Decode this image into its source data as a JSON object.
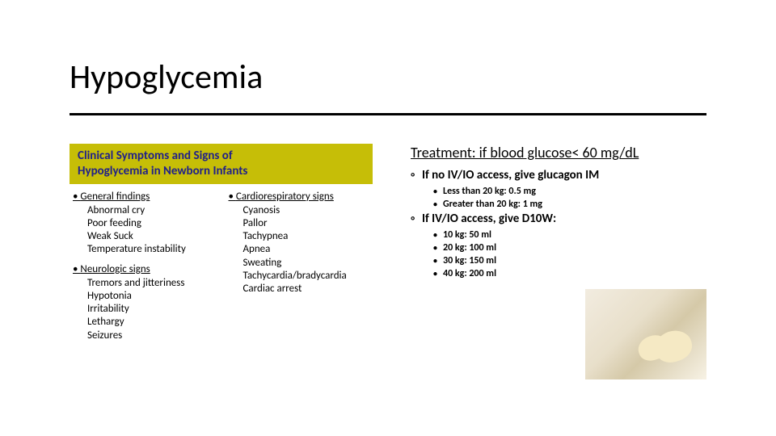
{
  "title": "Hypoglycemia",
  "panel": {
    "heading_l1": "Clinical Symptoms and Signs of",
    "heading_l2": "Hypoglycemia in Newborn Infants",
    "col1": {
      "g1_title": "General findings",
      "g1_i1": "Abnormal cry",
      "g1_i2": "Poor feeding",
      "g1_i3": "Weak Suck",
      "g1_i4": "Temperature instability",
      "g2_title": "Neurologic signs",
      "g2_i1": "Tremors and jitteriness",
      "g2_i2": "Hypotonia",
      "g2_i3": "Irritability",
      "g2_i4": "Lethargy",
      "g2_i5": "Seizures"
    },
    "col2": {
      "g1_title": "Cardiorespiratory signs",
      "g1_i1": "Cyanosis",
      "g1_i2": "Pallor",
      "g1_i3": "Tachypnea",
      "g1_i4": "Apnea",
      "g1_i5": "Sweating",
      "g1_i6": "Tachycardia/bradycardia",
      "g1_i7": "Cardiac arrest"
    }
  },
  "right": {
    "heading": "Treatment: if blood glucose< 60 mg/dL",
    "b1": "If no IV/IO access, give glucagon IM",
    "b1_s1": "Less than 20 kg: 0.5 mg",
    "b1_s2": "Greater than 20 kg: 1 mg",
    "b2": "If IV/IO access, give D10W:",
    "b2_s1": "10 kg: 50 ml",
    "b2_s2": "20 kg: 100 ml",
    "b2_s3": "30 kg: 150 ml",
    "b2_s4": "40 kg: 200 ml"
  },
  "style": {
    "page_bg": "#ffffff",
    "title_fontsize": 42,
    "rule_color": "#000000",
    "panel_head_bg": "#c6be07",
    "panel_head_fg": "#20208a",
    "body_fontsize": 13,
    "rt_h1_fontsize": 18,
    "rt_l2_fontsize": 15,
    "rt_l3_fontsize": 12,
    "photo_w": 150,
    "photo_h": 112
  }
}
